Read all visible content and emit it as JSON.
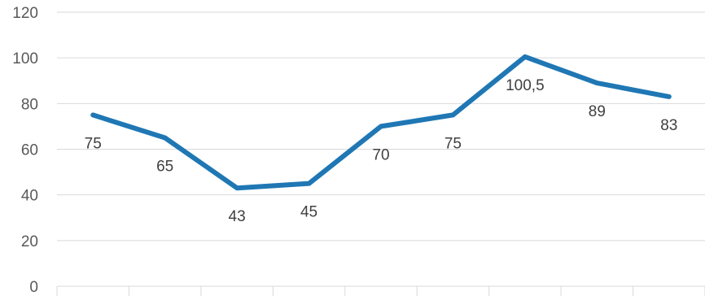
{
  "chart_data": {
    "type": "line",
    "title": "",
    "xlabel": "",
    "ylabel": "",
    "ylim": [
      0,
      120
    ],
    "yticks": [
      "0",
      "20",
      "40",
      "60",
      "80",
      "100",
      "120"
    ],
    "grid": true,
    "line_color": "#1f77b4",
    "series": [
      {
        "values": [
          75,
          65,
          43,
          45,
          70,
          75,
          100.5,
          89,
          83
        ],
        "labels": [
          "75",
          "65",
          "43",
          "45",
          "70",
          "75",
          "100,5",
          "89",
          "83"
        ]
      }
    ]
  }
}
